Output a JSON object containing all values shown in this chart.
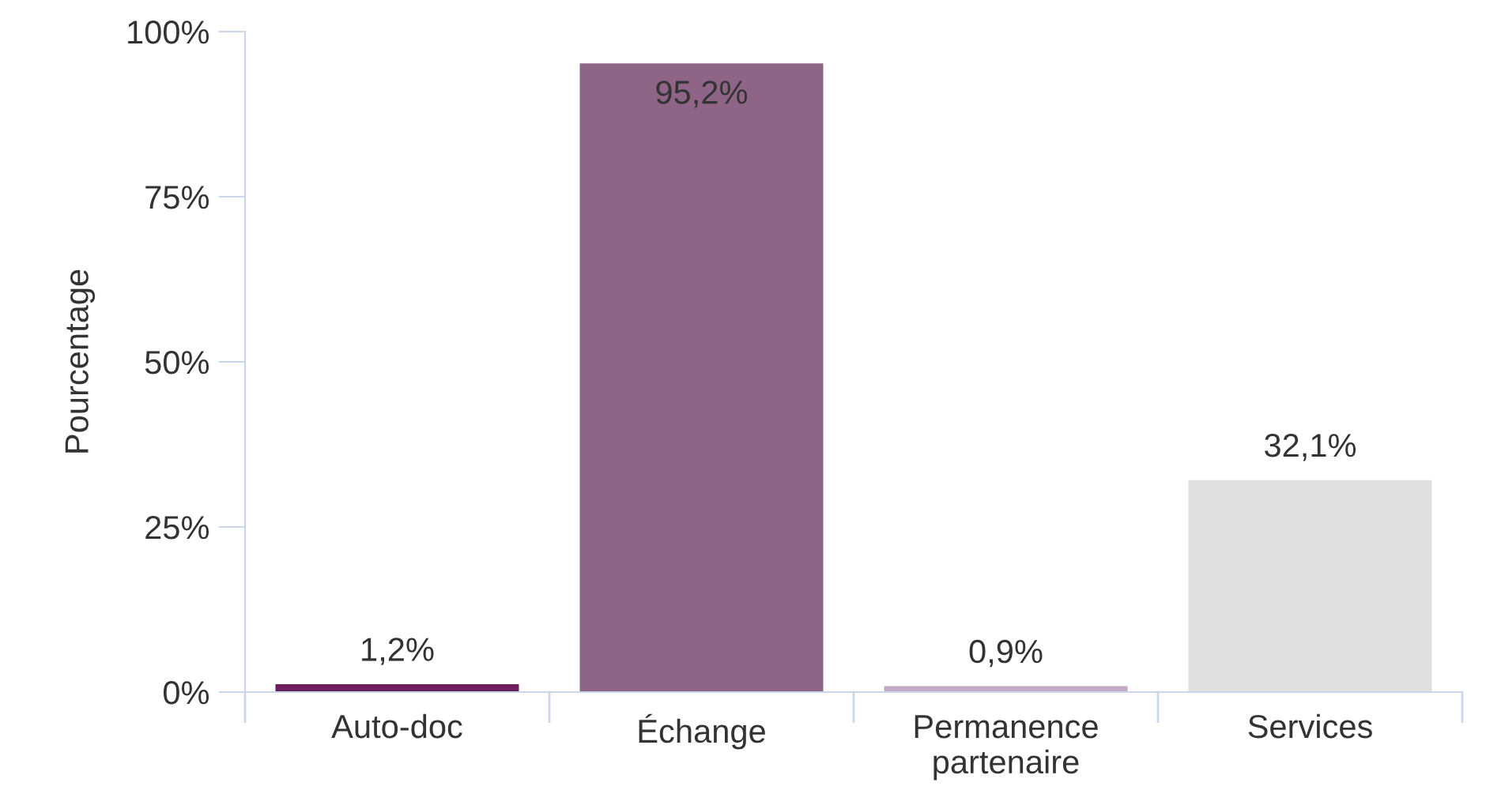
{
  "chart_data": {
    "type": "bar",
    "ylabel": "Pourcentage",
    "categories": [
      "Auto-doc",
      "Échange",
      "Permanence\npartenaire",
      "Services"
    ],
    "values": [
      1.2,
      95.2,
      0.9,
      32.1
    ],
    "colors": [
      "#6b1f5c",
      "#8e6586",
      "#c4a9c6",
      "#e0e0e0"
    ],
    "value_labels": [
      "1,2%",
      "95,2%",
      "0,9%",
      "32,1%"
    ],
    "ylim": [
      0,
      100
    ],
    "yticks": [
      {
        "value": 0,
        "label": "0%"
      },
      {
        "value": 25,
        "label": "25%"
      },
      {
        "value": 50,
        "label": "50%"
      },
      {
        "value": 75,
        "label": "75%"
      },
      {
        "value": 100,
        "label": "100%"
      }
    ],
    "grid": false,
    "legend": false
  }
}
